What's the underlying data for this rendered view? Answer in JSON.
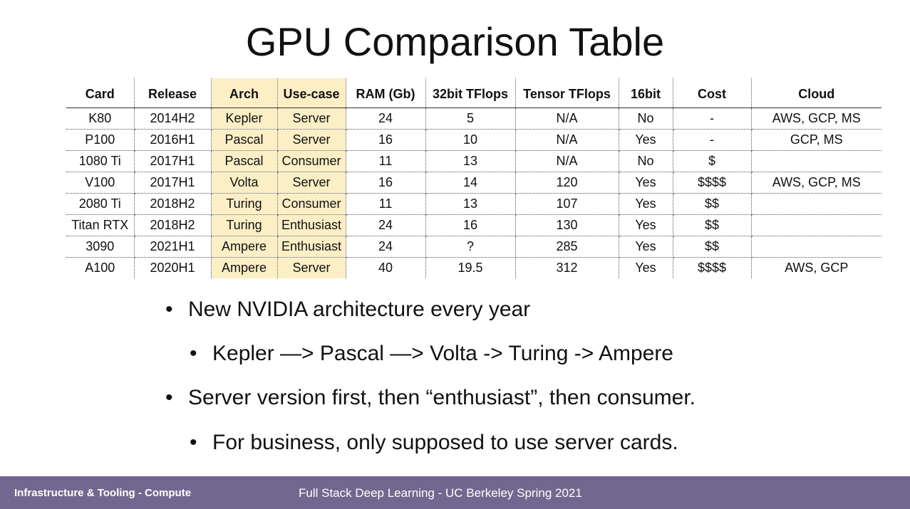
{
  "title": "GPU Comparison Table",
  "table": {
    "headers": [
      "Card",
      "Release",
      "Arch",
      "Use-case",
      "RAM (Gb)",
      "32bit TFlops",
      "Tensor TFlops",
      "16bit",
      "Cost",
      "Cloud"
    ],
    "highlight_color": "#fcefc6",
    "rows": [
      [
        "K80",
        "2014H2",
        "Kepler",
        "Server",
        "24",
        "5",
        "N/A",
        "No",
        "-",
        "AWS, GCP, MS"
      ],
      [
        "P100",
        "2016H1",
        "Pascal",
        "Server",
        "16",
        "10",
        "N/A",
        "Yes",
        "-",
        "GCP, MS"
      ],
      [
        "1080 Ti",
        "2017H1",
        "Pascal",
        "Consumer",
        "11",
        "13",
        "N/A",
        "No",
        "$",
        ""
      ],
      [
        "V100",
        "2017H1",
        "Volta",
        "Server",
        "16",
        "14",
        "120",
        "Yes",
        "$$$$",
        "AWS, GCP, MS"
      ],
      [
        "2080 Ti",
        "2018H2",
        "Turing",
        "Consumer",
        "11",
        "13",
        "107",
        "Yes",
        "$$",
        ""
      ],
      [
        "Titan RTX",
        "2018H2",
        "Turing",
        "Enthusiast",
        "24",
        "16",
        "130",
        "Yes",
        "$$",
        ""
      ],
      [
        "3090",
        "2021H1",
        "Ampere",
        "Enthusiast",
        "24",
        "?",
        "285",
        "Yes",
        "$$",
        ""
      ],
      [
        "A100",
        "2020H1",
        "Ampere",
        "Server",
        "40",
        "19.5",
        "312",
        "Yes",
        "$$$$",
        "AWS, GCP"
      ]
    ]
  },
  "bullets": [
    {
      "text": "New NVIDIA architecture every year"
    },
    {
      "text": "Kepler —> Pascal —> Volta -> Turing -> Ampere"
    },
    {
      "text": "Server version first, then “enthusiast”, then consumer."
    },
    {
      "text": "For business, only supposed to use server cards."
    }
  ],
  "bullet_glyph": "•",
  "footer": {
    "left": "Infrastructure & Tooling - Compute",
    "center": "Full Stack Deep Learning - UC Berkeley Spring 2021",
    "color": "#72688f"
  }
}
